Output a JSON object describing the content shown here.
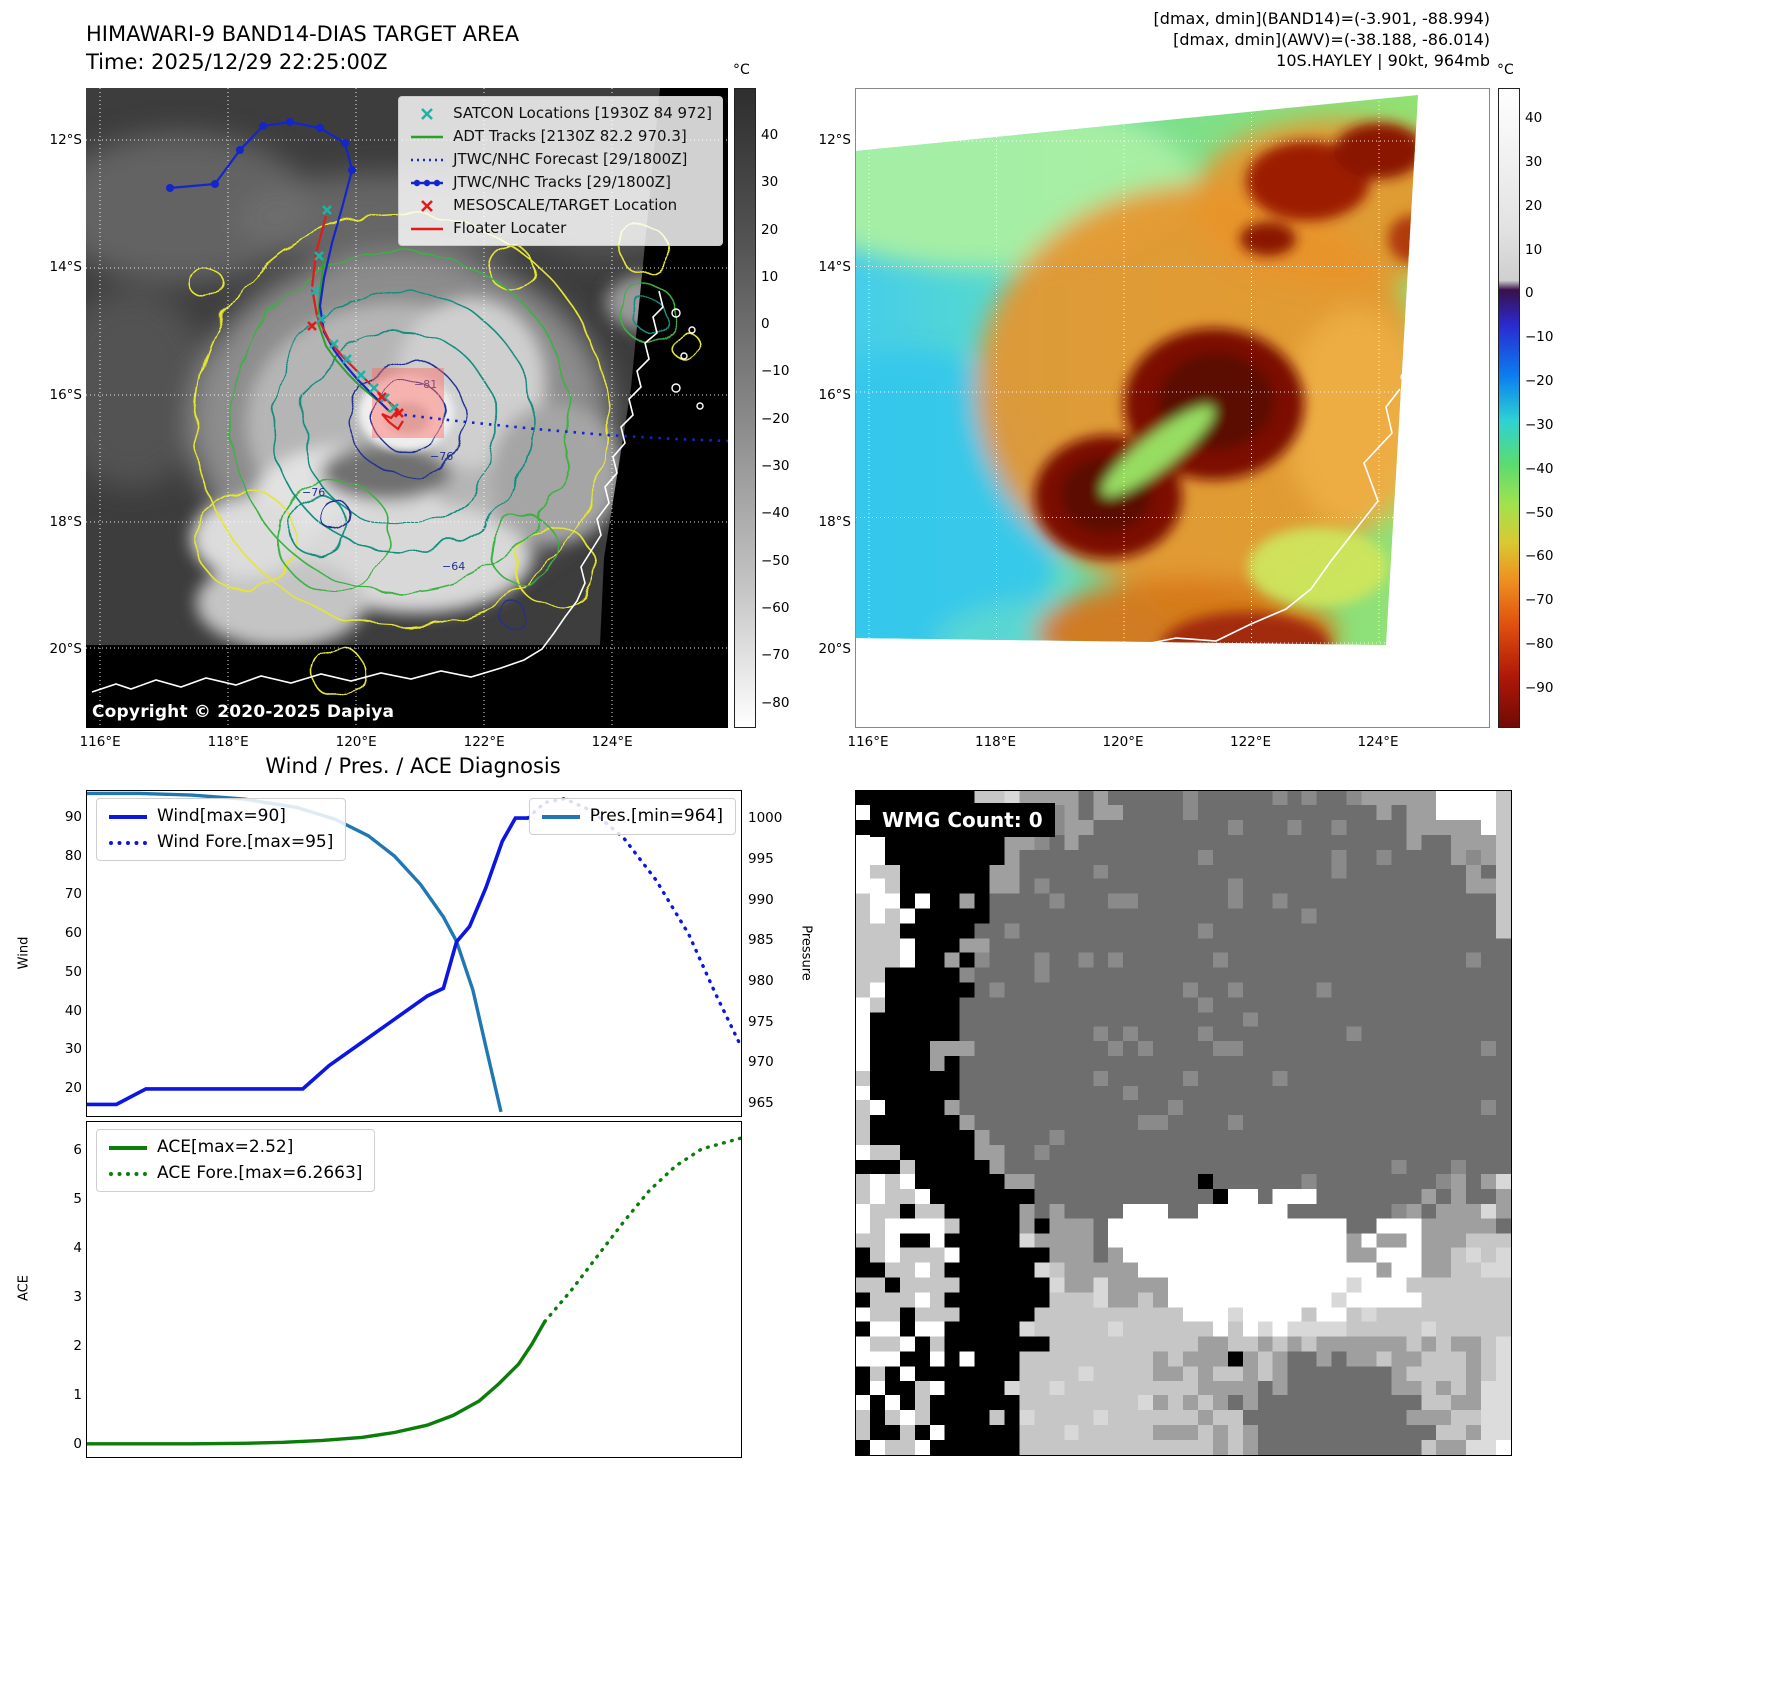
{
  "panel1": {
    "title": "HIMAWARI-9 BAND14-DIAS TARGET AREA",
    "time": "Time: 2025/12/29 22:25:00Z",
    "copyright": "Copyright © 2020-2025 Dapiya",
    "colorbar": {
      "unit": "°C",
      "ticks": [
        "40",
        "30",
        "20",
        "10",
        "0",
        "−10",
        "−20",
        "−30",
        "−40",
        "−50",
        "−60",
        "−70",
        "−80"
      ]
    },
    "x_ticks": [
      "116°E",
      "118°E",
      "120°E",
      "122°E",
      "124°E"
    ],
    "y_ticks": [
      "12°S",
      "14°S",
      "16°S",
      "18°S",
      "20°S"
    ],
    "contour_labels": [
      "−81",
      "−76",
      "−76",
      "−64"
    ],
    "legend": [
      {
        "marker": "x-cross",
        "color": "#1fb3a6",
        "label": "SATCON Locations [1930Z 84 972]"
      },
      {
        "marker": "line",
        "color": "#2ca02c",
        "label": "ADT Tracks [2130Z 82.2 970.3]"
      },
      {
        "marker": "dotted-line",
        "color": "#1525cc",
        "label": "JTWC/NHC Forecast [29/1800Z]"
      },
      {
        "marker": "line-with-dots",
        "color": "#1525cc",
        "label": "JTWC/NHC Tracks [29/1800Z]"
      },
      {
        "marker": "x-cross",
        "color": "#e31a1a",
        "label": "MESOSCALE/TARGET Location"
      },
      {
        "marker": "line",
        "color": "#e31a1a",
        "label": "Floater Locater"
      }
    ]
  },
  "panel2": {
    "header_lines": [
      "[dmax, dmin](BAND14)=(-3.901, -88.994)",
      "[dmax, dmin](AWV)=(-38.188, -86.014)",
      "10S.HAYLEY | 90kt, 964mb"
    ],
    "colorbar": {
      "unit": "°C",
      "ticks": [
        "40",
        "30",
        "20",
        "10",
        "0",
        "−10",
        "−20",
        "−30",
        "−40",
        "−50",
        "−60",
        "−70",
        "−80",
        "−90"
      ]
    },
    "x_ticks": [
      "116°E",
      "118°E",
      "120°E",
      "122°E",
      "124°E"
    ],
    "y_ticks": [
      "12°S",
      "14°S",
      "16°S",
      "18°S",
      "20°S"
    ]
  },
  "panel3": {
    "title": "Wind / Pres. / ACE Diagnosis"
  },
  "panel4": {
    "label": "WMG Count: 0"
  },
  "chart_data": [
    {
      "type": "line",
      "title": "Wind / Pres. / ACE Diagnosis (upper: wind & pressure)",
      "x_note": "time axis shown without tick labels (normalized 0-1)",
      "legend_position": "upper-left and upper-right",
      "axes": {
        "wind": {
          "label": "Wind",
          "ticks": [
            90,
            80,
            70,
            60,
            50,
            40,
            30,
            20
          ],
          "range": [
            13,
            97
          ]
        },
        "pressure": {
          "label": "Pressure",
          "ticks": [
            1000,
            995,
            990,
            985,
            980,
            975,
            970,
            965
          ],
          "range": [
            963.5,
            1003.5
          ]
        }
      },
      "series": [
        {
          "name": "Wind[max=90]",
          "axis": "wind",
          "style": "solid",
          "color": "#0b16e3",
          "x": [
            0,
            0.045,
            0.09,
            0.33,
            0.37,
            0.42,
            0.47,
            0.52,
            0.545,
            0.565,
            0.585,
            0.61,
            0.635,
            0.655,
            0.674
          ],
          "y": [
            16,
            16,
            20,
            20,
            26,
            32,
            38,
            44,
            46,
            58,
            62,
            72,
            84,
            90,
            90
          ]
        },
        {
          "name": "Wind Fore.[max=95]",
          "axis": "wind",
          "style": "dotted",
          "color": "#0b16e3",
          "x": [
            0.674,
            0.7,
            0.73,
            0.77,
            0.82,
            0.87,
            0.92,
            0.96,
            1.0
          ],
          "y": [
            90,
            94,
            95,
            92,
            85,
            74,
            60,
            45,
            31
          ]
        },
        {
          "name": "Pres.[min=964]",
          "axis": "pressure",
          "style": "solid",
          "color": "#1f77b4",
          "x": [
            0,
            0.08,
            0.16,
            0.24,
            0.32,
            0.38,
            0.43,
            0.47,
            0.51,
            0.545,
            0.565,
            0.59,
            0.61,
            0.633
          ],
          "y": [
            1003.2,
            1003.2,
            1003,
            1002.5,
            1001.5,
            1000,
            998,
            995.5,
            992,
            988,
            985,
            979,
            972,
            964
          ]
        }
      ]
    },
    {
      "type": "line",
      "title": "ACE diagnosis (lower)",
      "legend_position": "upper-left",
      "axes": {
        "ace": {
          "label": "ACE",
          "ticks": [
            6,
            5,
            4,
            3,
            2,
            1,
            0
          ],
          "range": [
            -0.25,
            6.6
          ]
        }
      },
      "series": [
        {
          "name": "ACE[max=2.52]",
          "style": "solid",
          "color": "#0a7d0a",
          "x": [
            0,
            0.08,
            0.16,
            0.24,
            0.3,
            0.36,
            0.42,
            0.47,
            0.52,
            0.56,
            0.6,
            0.63,
            0.66,
            0.68,
            0.7
          ],
          "y": [
            0.02,
            0.02,
            0.02,
            0.03,
            0.05,
            0.09,
            0.15,
            0.25,
            0.4,
            0.6,
            0.9,
            1.25,
            1.65,
            2.05,
            2.52
          ]
        },
        {
          "name": "ACE Fore.[max=6.2663]",
          "style": "dotted",
          "color": "#0a7d0a",
          "x": [
            0.7,
            0.74,
            0.78,
            0.82,
            0.86,
            0.9,
            0.94,
            1.0
          ],
          "y": [
            2.52,
            3.15,
            3.85,
            4.55,
            5.2,
            5.7,
            6.05,
            6.27
          ]
        }
      ]
    }
  ]
}
